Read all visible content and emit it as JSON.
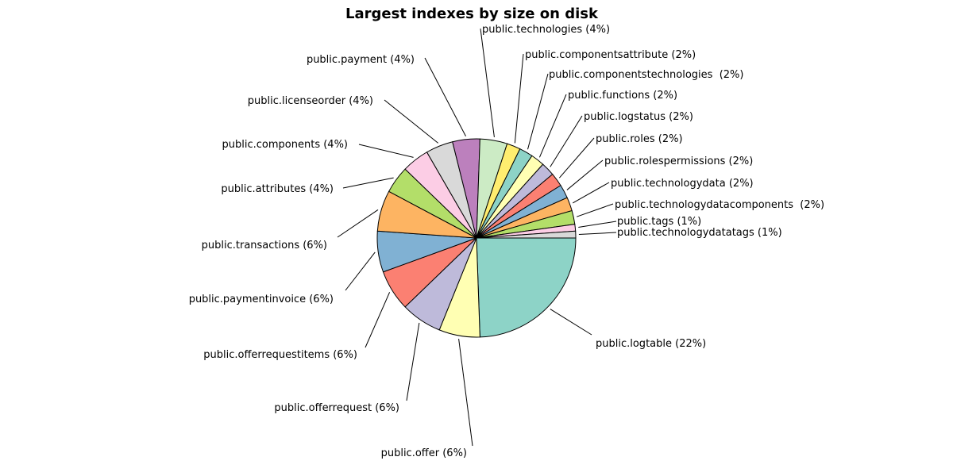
{
  "chart_data": {
    "type": "pie",
    "title": "Largest indexes by size on disk",
    "slices": [
      {
        "label": "public.logtable (22%)",
        "value": 22,
        "color": "#8dd3c7"
      },
      {
        "label": "public.offer (6%)",
        "value": 6,
        "color": "#ffffb3"
      },
      {
        "label": "public.offerrequest (6%)",
        "value": 6,
        "color": "#bebada"
      },
      {
        "label": "public.offerrequestitems (6%)",
        "value": 6,
        "color": "#fb8072"
      },
      {
        "label": "public.paymentinvoice (6%)",
        "value": 6,
        "color": "#80b1d3"
      },
      {
        "label": "public.transactions (6%)",
        "value": 6,
        "color": "#fdb462"
      },
      {
        "label": "public.attributes (4%)",
        "value": 4,
        "color": "#b3de69"
      },
      {
        "label": "public.components (4%)",
        "value": 4,
        "color": "#fccde5"
      },
      {
        "label": "public.licenseorder (4%)",
        "value": 4,
        "color": "#d9d9d9"
      },
      {
        "label": "public.payment (4%)",
        "value": 4,
        "color": "#bc80bd"
      },
      {
        "label": "public.technologies (4%)",
        "value": 4,
        "color": "#ccebc5"
      },
      {
        "label": "public.componentsattribute (2%)",
        "value": 2,
        "color": "#ffed6f"
      },
      {
        "label": "public.componentstechnologies  (2%)",
        "value": 2,
        "color": "#8dd3c7"
      },
      {
        "label": "public.functions (2%)",
        "value": 2,
        "color": "#ffffb3"
      },
      {
        "label": "public.logstatus (2%)",
        "value": 2,
        "color": "#bebada"
      },
      {
        "label": "public.roles (2%)",
        "value": 2,
        "color": "#fb8072"
      },
      {
        "label": "public.rolespermissions (2%)",
        "value": 2,
        "color": "#80b1d3"
      },
      {
        "label": "public.technologydata (2%)",
        "value": 2,
        "color": "#fdb462"
      },
      {
        "label": "public.technologydatacomponents  (2%)",
        "value": 2,
        "color": "#b3de69"
      },
      {
        "label": "public.tags (1%)",
        "value": 1,
        "color": "#fccde5"
      },
      {
        "label": "public.technologydatatags (1%)",
        "value": 1,
        "color": "#d9d9d9"
      }
    ]
  }
}
